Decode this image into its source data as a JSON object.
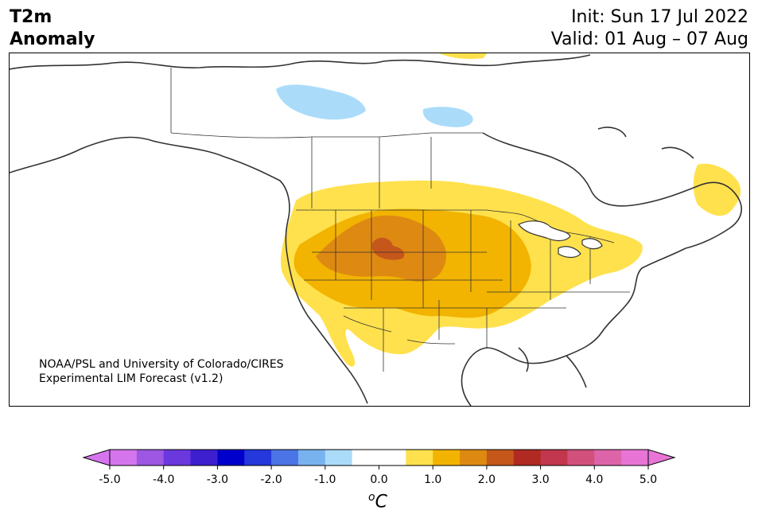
{
  "title": {
    "variable": "T2m",
    "kind": "Anomaly",
    "init": "Init: Sun 17 Jul 2022",
    "valid": "Valid: 01 Aug – 07 Aug"
  },
  "credit": {
    "line1": "NOAA/PSL and University of Colorado/CIRES",
    "line2": "Experimental LIM Forecast (v1.2)"
  },
  "colorbar": {
    "unit_base": "C",
    "unit_sup": "o",
    "ticks": [
      "-5.0",
      "-4.0",
      "-3.0",
      "-2.0",
      "-1.0",
      "0.0",
      "1.0",
      "2.0",
      "3.0",
      "4.0",
      "5.0"
    ],
    "colors": [
      "#d575ee",
      "#9d57e2",
      "#6b38de",
      "#3e1fd0",
      "#0000cc",
      "#2438dc",
      "#4b74e6",
      "#78b3f0",
      "#aadcfa",
      "#ffffff",
      "#ffffff",
      "#ffe14d",
      "#f2b400",
      "#de8a12",
      "#c5571a",
      "#b02a22",
      "#c2374d",
      "#d2517c",
      "#dd64a9",
      "#e875d5"
    ]
  },
  "legend_levels": {
    "cool_light": "#aadcfa",
    "warm_yellow": "#ffe14d",
    "warm_gold": "#f2b400",
    "warm_orange": "#de8a12",
    "warm_dark": "#c5571a"
  }
}
